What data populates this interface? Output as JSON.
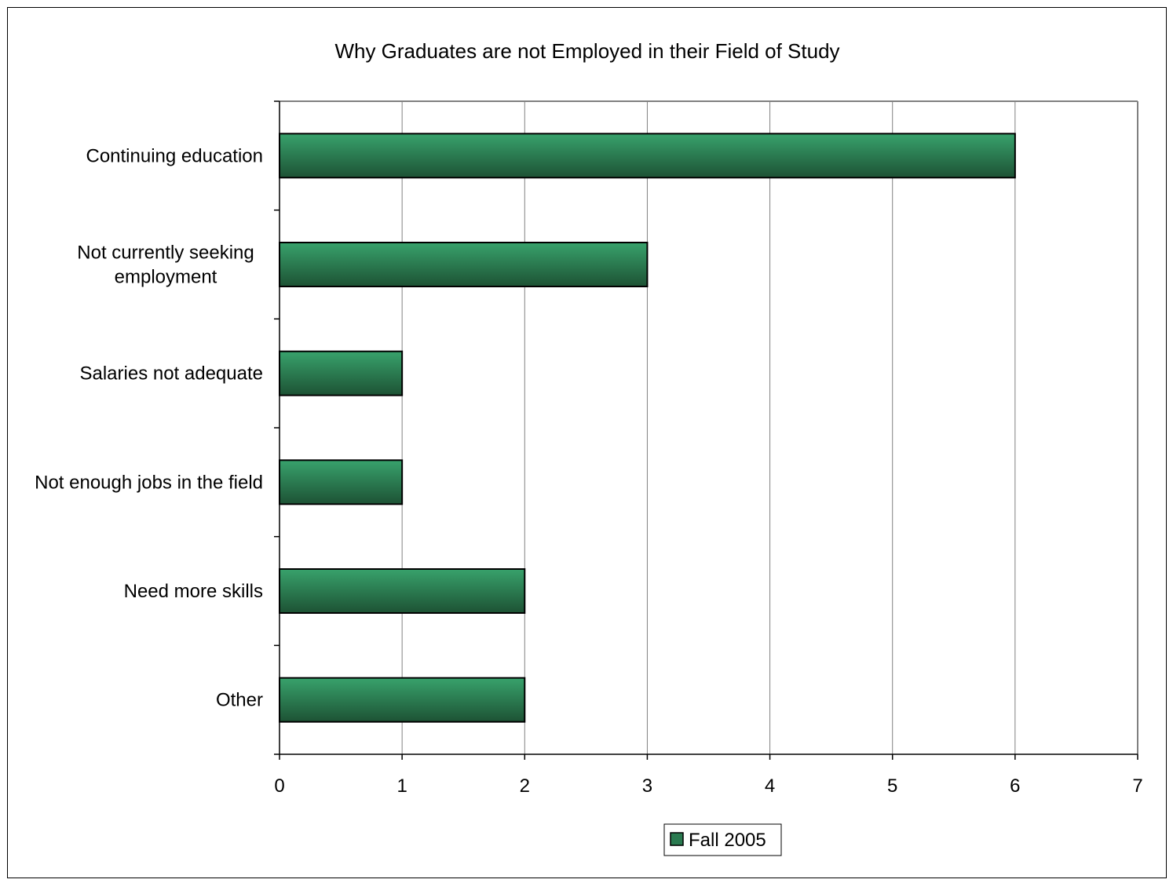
{
  "chart_data": {
    "type": "bar",
    "orientation": "horizontal",
    "title": "Why Graduates are not Employed in their Field of Study",
    "xlabel": "",
    "ylabel": "",
    "categories": [
      "Continuing education",
      "Not currently seeking employment",
      "Salaries not adequate",
      "Not enough jobs in the field",
      "Need more skills",
      "Other"
    ],
    "category_label_lines": [
      [
        "Continuing education"
      ],
      [
        "Not currently seeking",
        "employment"
      ],
      [
        "Salaries not adequate"
      ],
      [
        "Not enough jobs in the field"
      ],
      [
        "Need more skills"
      ],
      [
        "Other"
      ]
    ],
    "series": [
      {
        "name": "Fall 2005",
        "values": [
          6,
          3,
          1,
          1,
          2,
          2
        ],
        "color": "#2a7a50"
      }
    ],
    "xlim": [
      0,
      7
    ],
    "xticks": [
      0,
      1,
      2,
      3,
      4,
      5,
      6,
      7
    ],
    "grid": true,
    "legend_position": "bottom-center",
    "colors": {
      "bar_top": "#38a26c",
      "bar_bottom": "#1d5234",
      "gridline": "#808080",
      "plot_border": "#808080"
    }
  }
}
